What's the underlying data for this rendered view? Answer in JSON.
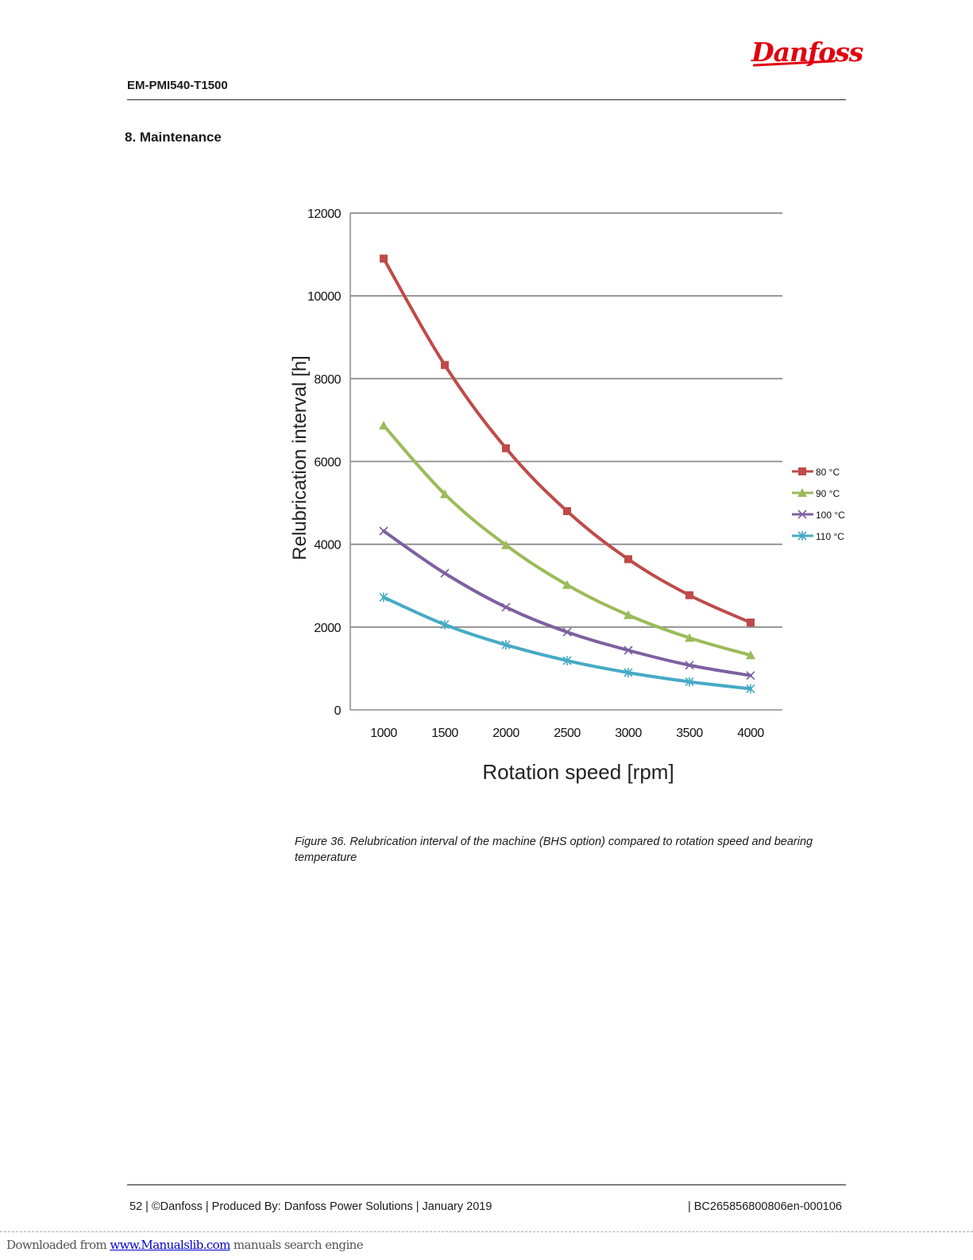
{
  "header": {
    "brand": "Danfoss",
    "doc_id": "EM-PMI540-T1500"
  },
  "section_title": "8. Maintenance",
  "chart_data": {
    "type": "line",
    "title": "",
    "xlabel": "Rotation speed [rpm]",
    "ylabel": "Relubrication interval [h]",
    "categories": [
      "1000",
      "1500",
      "2000",
      "2500",
      "3000",
      "3500",
      "4000"
    ],
    "y_ticks": [
      "0",
      "2000",
      "4000",
      "6000",
      "8000",
      "10000",
      "12000"
    ],
    "ylim": [
      0,
      12000
    ],
    "grid": true,
    "legend_position": "right",
    "series": [
      {
        "name": "80 °C",
        "color": "#be4b48",
        "marker": "square",
        "values": [
          10900,
          8330,
          6320,
          4800,
          3640,
          2770,
          2110
        ]
      },
      {
        "name": "90 °C",
        "color": "#9bbb59",
        "marker": "triangle",
        "values": [
          6870,
          5210,
          3980,
          3020,
          2290,
          1740,
          1320
        ]
      },
      {
        "name": "100 °C",
        "color": "#7d60a0",
        "marker": "x",
        "values": [
          4320,
          3300,
          2480,
          1880,
          1440,
          1080,
          830
        ]
      },
      {
        "name": "110 °C",
        "color": "#46aac5",
        "marker": "star",
        "values": [
          2720,
          2060,
          1570,
          1190,
          900,
          680,
          510
        ]
      }
    ]
  },
  "caption": "Figure 36. Relubrication interval of the machine (BHS option) compared to rotation speed and bearing temperature",
  "footer": {
    "left": "52 | ©Danfoss | Produced By: Danfoss Power Solutions | January 2019",
    "right": "| BC265856800806en-000106"
  },
  "download_bar": {
    "prefix": "Downloaded from ",
    "link": "www.Manualslib.com",
    "suffix": "  manuals search engine"
  }
}
